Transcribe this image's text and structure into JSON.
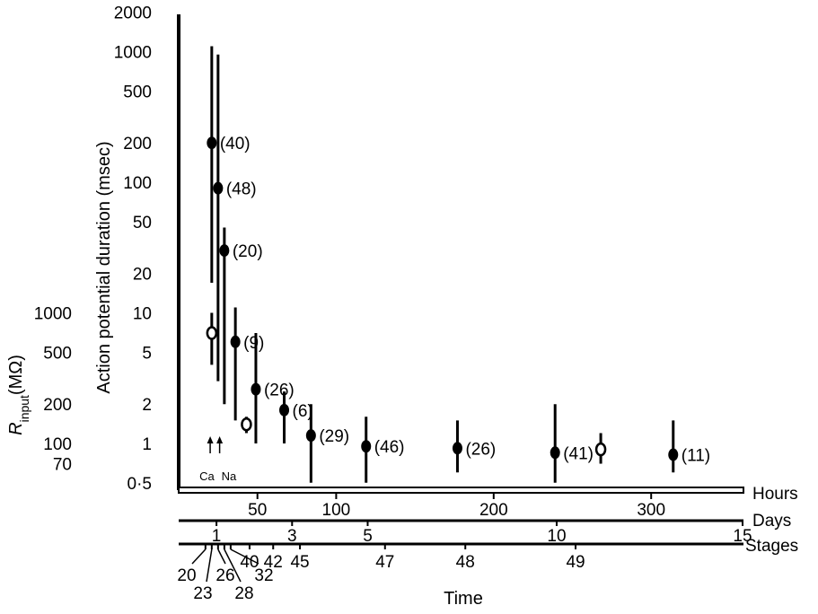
{
  "chart_data": {
    "type": "scatter",
    "y_scale": "log",
    "ylim": [
      0.5,
      2000
    ],
    "xlim_hours": [
      0,
      325
    ],
    "ylabel": "Action potential duration (msec)",
    "ylabel2": "R_input(MΩ)",
    "ylabel2_parts": {
      "symbol": "R",
      "subscript": "input",
      "unit": "(MΩ)"
    },
    "xlabel": "Time",
    "y_ticks": [
      {
        "value": 2000,
        "label": "2000"
      },
      {
        "value": 1000,
        "label": "1000"
      },
      {
        "value": 500,
        "label": "500"
      },
      {
        "value": 200,
        "label": "200"
      },
      {
        "value": 100,
        "label": "100"
      },
      {
        "value": 50,
        "label": "50"
      },
      {
        "value": 20,
        "label": "20"
      },
      {
        "value": 10,
        "label": "10"
      },
      {
        "value": 5,
        "label": "5"
      },
      {
        "value": 2,
        "label": "2"
      },
      {
        "value": 1,
        "label": "1"
      },
      {
        "value": 0.5,
        "label": "0·5"
      }
    ],
    "y2_ticks": [
      {
        "value": 10,
        "label": "1000"
      },
      {
        "value": 5,
        "label": "500"
      },
      {
        "value": 2,
        "label": "200"
      },
      {
        "value": 1,
        "label": "100"
      },
      {
        "value": 0.7,
        "label": "70"
      }
    ],
    "scales": [
      {
        "name": "Hours",
        "ticks": [
          {
            "hour": 50,
            "label": "50"
          },
          {
            "hour": 100,
            "label": "100"
          },
          {
            "hour": 200,
            "label": "200"
          },
          {
            "hour": 300,
            "label": "300"
          }
        ]
      },
      {
        "name": "Days",
        "ticks": [
          {
            "hour": 24,
            "label": "1"
          },
          {
            "hour": 72,
            "label": "3"
          },
          {
            "hour": 120,
            "label": "5"
          },
          {
            "hour": 240,
            "label": "10"
          },
          {
            "hour": 360,
            "label": "15"
          }
        ]
      },
      {
        "name": "Stages",
        "ticks": [
          {
            "hour": 17,
            "label": "20"
          },
          {
            "hour": 21,
            "label": "23"
          },
          {
            "hour": 25,
            "label": "26"
          },
          {
            "hour": 29,
            "label": "28"
          },
          {
            "hour": 33,
            "label": "32"
          },
          {
            "hour": 45,
            "label": "40"
          },
          {
            "hour": 60,
            "label": "42"
          },
          {
            "hour": 77,
            "label": "45"
          },
          {
            "hour": 131,
            "label": "47"
          },
          {
            "hour": 182,
            "label": "48"
          },
          {
            "hour": 252,
            "label": "49"
          }
        ]
      }
    ],
    "series": [
      {
        "marker": "filled",
        "points": [
          {
            "hour": 21,
            "y": 200,
            "lo": 17,
            "hi": 1100,
            "n": "(40)"
          },
          {
            "hour": 25,
            "y": 90,
            "lo": 3,
            "hi": 950,
            "n": "(48)"
          },
          {
            "hour": 29,
            "y": 30,
            "lo": 2,
            "hi": 45,
            "n": "(20)"
          },
          {
            "hour": 36,
            "y": 6,
            "lo": 1.5,
            "hi": 11,
            "n": "(9)"
          },
          {
            "hour": 49,
            "y": 2.6,
            "lo": 1,
            "hi": 7,
            "n": "(26)"
          },
          {
            "hour": 67,
            "y": 1.8,
            "lo": 1,
            "hi": 2.5,
            "n": "(6)"
          },
          {
            "hour": 84,
            "y": 1.15,
            "lo": 0.5,
            "hi": 2,
            "n": "(29)"
          },
          {
            "hour": 119,
            "y": 0.95,
            "lo": 0.5,
            "hi": 1.6,
            "n": "(46)"
          },
          {
            "hour": 177,
            "y": 0.92,
            "lo": 0.6,
            "hi": 1.5,
            "n": "(26)"
          },
          {
            "hour": 239,
            "y": 0.85,
            "lo": 0.5,
            "hi": 2,
            "n": "(41)"
          },
          {
            "hour": 314,
            "y": 0.82,
            "lo": 0.6,
            "hi": 1.5,
            "n": "(11)"
          }
        ]
      },
      {
        "marker": "open",
        "points": [
          {
            "hour": 21,
            "y": 7,
            "lo": 4,
            "hi": 10
          },
          {
            "hour": 43,
            "y": 1.4,
            "lo": 1.2,
            "hi": 1.6
          },
          {
            "hour": 268,
            "y": 0.9,
            "lo": 0.7,
            "hi": 1.2
          }
        ]
      }
    ],
    "annotations": [
      {
        "text": "Ca",
        "hour": 20,
        "arrow": true
      },
      {
        "text": "Na",
        "hour": 26,
        "arrow": true
      }
    ]
  }
}
